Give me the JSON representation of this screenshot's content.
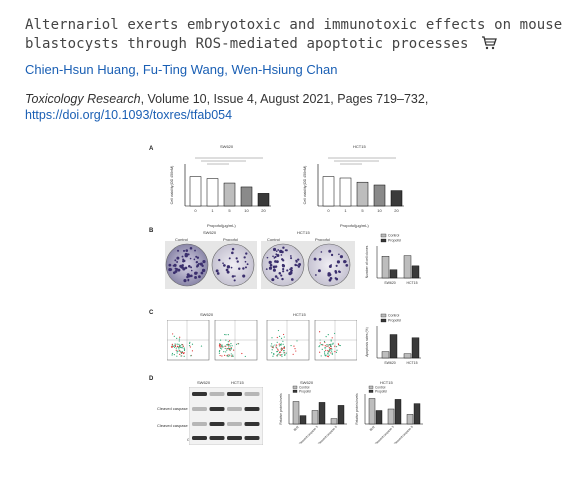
{
  "article": {
    "title": "Alternariol exerts embryotoxic and immunotoxic effects on mouse blastocysts through ROS-mediated apoptotic processes",
    "cart_icon": "shopping-cart-icon",
    "authors": [
      "Chien-Hsun Huang",
      "Fu-Ting Wang",
      "Wen-Hsiung Chan"
    ],
    "author_sep": ", ",
    "journal": "Toxicology Research",
    "citation_rest": ", Volume 10, Issue 4, August 2021, Pages 719–732,",
    "doi": "https://doi.org/10.1093/toxres/tfab054"
  },
  "figure": {
    "panels": [
      "A",
      "B",
      "C",
      "D"
    ],
    "sw620": "SW620",
    "hct15": "HCT15",
    "control": "Control",
    "propofol": "Propofol",
    "ylabel_a": "Cell viability(OD 450nM)",
    "xlabel_a": "Propofol(μg/mL)",
    "ylabel_b": "Number of cell clones",
    "ylabel_c": "Apoptosis rates (%)",
    "ylabel_d": "Relative protein levels",
    "blot_labels": [
      "Bcl2",
      "Cleaved caspase 3",
      "Cleaved caspase 9",
      "GAPDH"
    ],
    "colors": {
      "white_bar": "#ffffff",
      "light_bar": "#bdbdbd",
      "mid_bar": "#8a8a8a",
      "dark_bar": "#3a3a3a"
    }
  },
  "chart_data": [
    {
      "type": "bar",
      "title": "SW620",
      "categories": [
        "0",
        "1",
        "5",
        "10",
        "20"
      ],
      "values": [
        1.05,
        0.98,
        0.82,
        0.68,
        0.45
      ],
      "ylim": [
        0,
        1.5
      ]
    },
    {
      "type": "bar",
      "title": "HCT15",
      "categories": [
        "0",
        "1",
        "5",
        "10",
        "20"
      ],
      "values": [
        1.05,
        1.0,
        0.85,
        0.75,
        0.55
      ],
      "ylim": [
        0,
        1.5
      ]
    },
    {
      "type": "bar",
      "categories": [
        "SW620",
        "HCT15"
      ],
      "series": [
        {
          "name": "Control",
          "values": [
            170,
            175
          ]
        },
        {
          "name": "Propofol",
          "values": [
            65,
            95
          ]
        }
      ],
      "ylim": [
        0,
        250
      ]
    },
    {
      "type": "bar",
      "categories": [
        "SW620",
        "HCT15"
      ],
      "series": [
        {
          "name": "Control",
          "values": [
            6,
            4
          ]
        },
        {
          "name": "Propofol",
          "values": [
            22,
            19
          ]
        }
      ],
      "ylim": [
        0,
        30
      ]
    }
  ]
}
